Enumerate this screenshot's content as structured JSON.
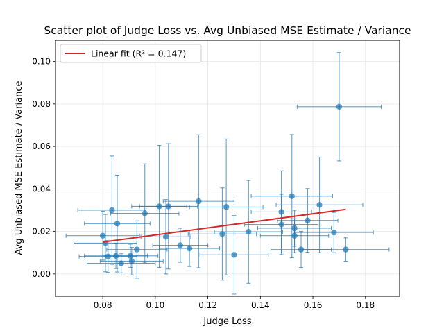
{
  "chart_data": {
    "type": "scatter",
    "title": "Scatter plot of Judge Loss vs. Avg Unbiased MSE Estimate / Variance",
    "xlabel": "Judge Loss",
    "ylabel": "Avg Unbiased MSE Estimate / Variance",
    "xlim": [
      0.062,
      0.193
    ],
    "ylim": [
      -0.0105,
      0.11
    ],
    "xticks": [
      0.08,
      0.1,
      0.12,
      0.14,
      0.16,
      0.18
    ],
    "xtick_labels": [
      "0.08",
      "0.10",
      "0.12",
      "0.14",
      "0.16",
      "0.18"
    ],
    "yticks": [
      0.0,
      0.02,
      0.04,
      0.06,
      0.08,
      0.1
    ],
    "ytick_labels": [
      "0.00",
      "0.02",
      "0.04",
      "0.06",
      "0.08",
      "0.10"
    ],
    "grid": true,
    "legend_position": "top-left",
    "legend": [
      "Linear fit (R² = 0.147)"
    ],
    "colors": {
      "points": "#1f77b4",
      "fit": "#d62728",
      "grid": "#e6e6e6"
    },
    "points": [
      {
        "x": 0.17,
        "y": 0.0787,
        "xerr": 0.016,
        "yerr": 0.0255
      },
      {
        "x": 0.0835,
        "y": 0.03,
        "xerr": 0.013,
        "yerr": 0.0255
      },
      {
        "x": 0.0855,
        "y": 0.0237,
        "xerr": 0.0125,
        "yerr": 0.0228
      },
      {
        "x": 0.08,
        "y": 0.018,
        "xerr": 0.014,
        "yerr": 0.0115
      },
      {
        "x": 0.081,
        "y": 0.0145,
        "xerr": 0.012,
        "yerr": 0.0135
      },
      {
        "x": 0.082,
        "y": 0.0082,
        "xerr": 0.011,
        "yerr": 0.0075
      },
      {
        "x": 0.085,
        "y": 0.0085,
        "xerr": 0.012,
        "yerr": 0.006
      },
      {
        "x": 0.087,
        "y": 0.005,
        "xerr": 0.013,
        "yerr": 0.0045
      },
      {
        "x": 0.0905,
        "y": 0.0085,
        "xerr": 0.0105,
        "yerr": 0.0055
      },
      {
        "x": 0.091,
        "y": 0.006,
        "xerr": 0.012,
        "yerr": 0.0065
      },
      {
        "x": 0.093,
        "y": 0.0115,
        "xerr": 0.0115,
        "yerr": 0.0135
      },
      {
        "x": 0.096,
        "y": 0.0285,
        "xerr": 0.013,
        "yerr": 0.0233
      },
      {
        "x": 0.1015,
        "y": 0.0318,
        "xerr": 0.0105,
        "yerr": 0.0287
      },
      {
        "x": 0.104,
        "y": 0.0175,
        "xerr": 0.0095,
        "yerr": 0.0175
      },
      {
        "x": 0.105,
        "y": 0.0318,
        "xerr": 0.011,
        "yerr": 0.0295
      },
      {
        "x": 0.1095,
        "y": 0.0135,
        "xerr": 0.0105,
        "yerr": 0.008
      },
      {
        "x": 0.113,
        "y": 0.012,
        "xerr": 0.0115,
        "yerr": 0.0085
      },
      {
        "x": 0.1165,
        "y": 0.0342,
        "xerr": 0.0135,
        "yerr": 0.0313
      },
      {
        "x": 0.1255,
        "y": 0.0188,
        "xerr": 0.013,
        "yerr": 0.0217
      },
      {
        "x": 0.127,
        "y": 0.0315,
        "xerr": 0.014,
        "yerr": 0.032
      },
      {
        "x": 0.13,
        "y": 0.009,
        "xerr": 0.013,
        "yerr": 0.0185
      },
      {
        "x": 0.1355,
        "y": 0.0198,
        "xerr": 0.013,
        "yerr": 0.0242
      },
      {
        "x": 0.148,
        "y": 0.0233,
        "xerr": 0.014,
        "yerr": 0.0142
      },
      {
        "x": 0.148,
        "y": 0.0292,
        "xerr": 0.0115,
        "yerr": 0.0193
      },
      {
        "x": 0.152,
        "y": 0.0366,
        "xerr": 0.0155,
        "yerr": 0.029
      },
      {
        "x": 0.153,
        "y": 0.0215,
        "xerr": 0.014,
        "yerr": 0.0085
      },
      {
        "x": 0.153,
        "y": 0.018,
        "xerr": 0.013,
        "yerr": 0.008
      },
      {
        "x": 0.1555,
        "y": 0.0115,
        "xerr": 0.0115,
        "yerr": 0.0085
      },
      {
        "x": 0.158,
        "y": 0.0252,
        "xerr": 0.0115,
        "yerr": 0.015
      },
      {
        "x": 0.1625,
        "y": 0.0325,
        "xerr": 0.0165,
        "yerr": 0.0225
      },
      {
        "x": 0.168,
        "y": 0.0195,
        "xerr": 0.015,
        "yerr": 0.0095
      },
      {
        "x": 0.1725,
        "y": 0.0115,
        "xerr": 0.0165,
        "yerr": 0.0055
      }
    ],
    "fit_line": {
      "x": [
        0.08,
        0.1725
      ],
      "y": [
        0.015,
        0.0304
      ]
    }
  }
}
